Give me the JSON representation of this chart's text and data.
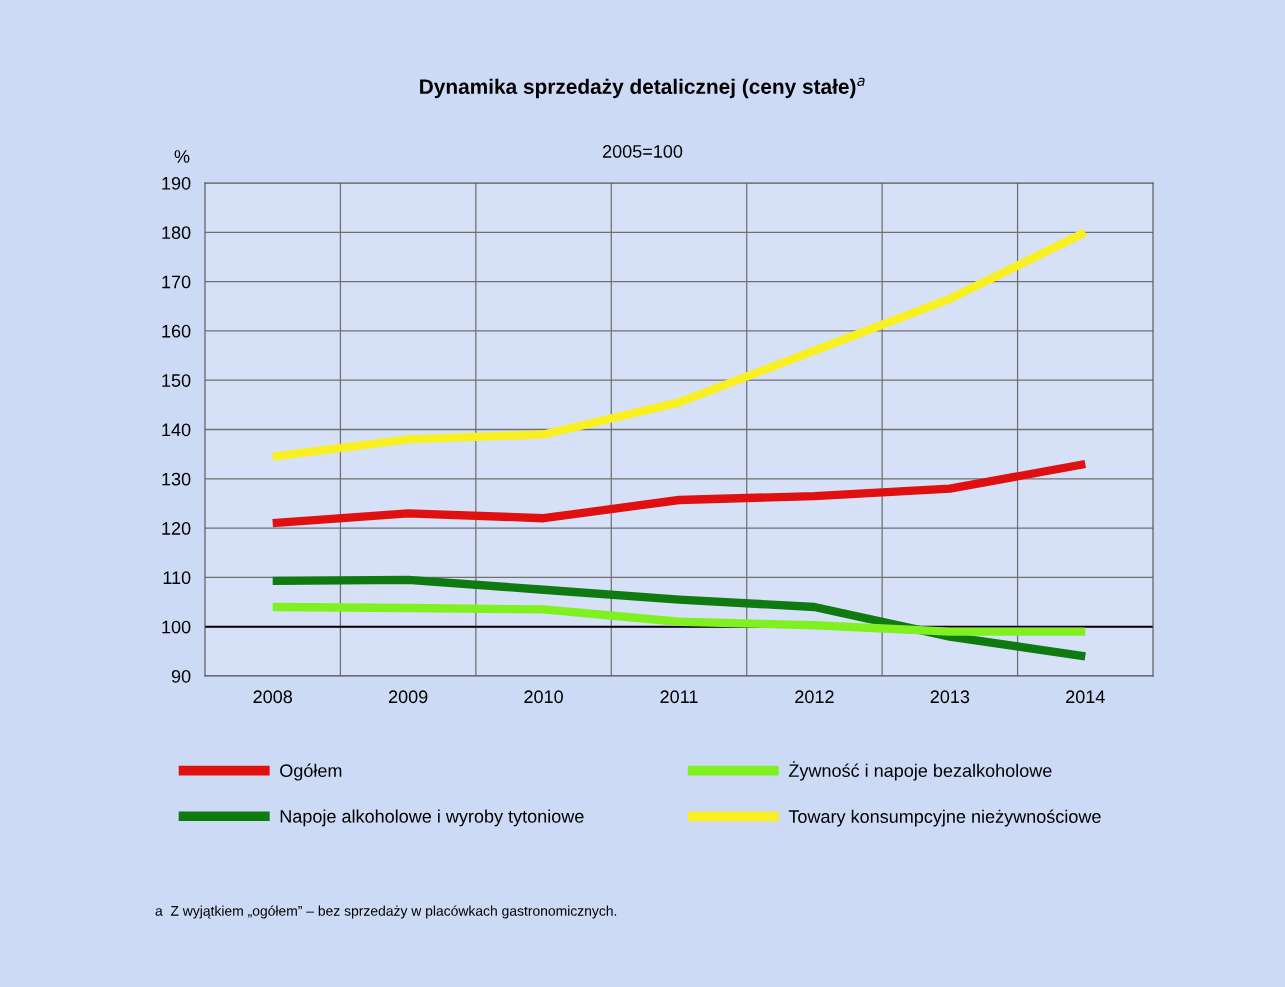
{
  "chart_data": {
    "type": "line",
    "title": "Dynamika sprzedaży detalicznej (ceny stałe)$^{a}$",
    "subtitle": "2005=100",
    "ylabel": "%",
    "categories": [
      "2008",
      "2009",
      "2010",
      "2011",
      "2012",
      "2013",
      "2014"
    ],
    "series": [
      {
        "name": "Ogółem",
        "color": "#e01010",
        "values": [
          121,
          123,
          122,
          125.7,
          126.5,
          128,
          133
        ]
      },
      {
        "name": "Napoje alkoholowe i wyroby tytoniowe",
        "color": "#0f7a10",
        "values": [
          109.3,
          109.5,
          107.5,
          105.5,
          104,
          98,
          94
        ]
      },
      {
        "name": "Żywność i napoje bezalkoholowe",
        "color": "#80f020",
        "values": [
          104,
          103.8,
          103.5,
          101,
          100.3,
          99,
          99
        ]
      },
      {
        "name": "Towary konsumpcyjne nieżywnościowe",
        "color": "#f8f020",
        "values": [
          134.5,
          138,
          139,
          145.5,
          156,
          166.5,
          180
        ]
      }
    ],
    "ylim": [
      90,
      190
    ],
    "yticks": [
      90,
      100,
      110,
      120,
      130,
      140,
      150,
      160,
      170,
      180,
      190
    ],
    "ref_lines": [
      {
        "axis": "y",
        "value": 100,
        "label": null,
        "color": "#000000"
      }
    ],
    "grid": true,
    "legend": "bottom",
    "line_style": "solid",
    "marker": "none",
    "annotations": [
      "a  Z wyjątkiem „ogółem” – bez sprzedaży w placówkach gastronomicznych."
    ]
  }
}
